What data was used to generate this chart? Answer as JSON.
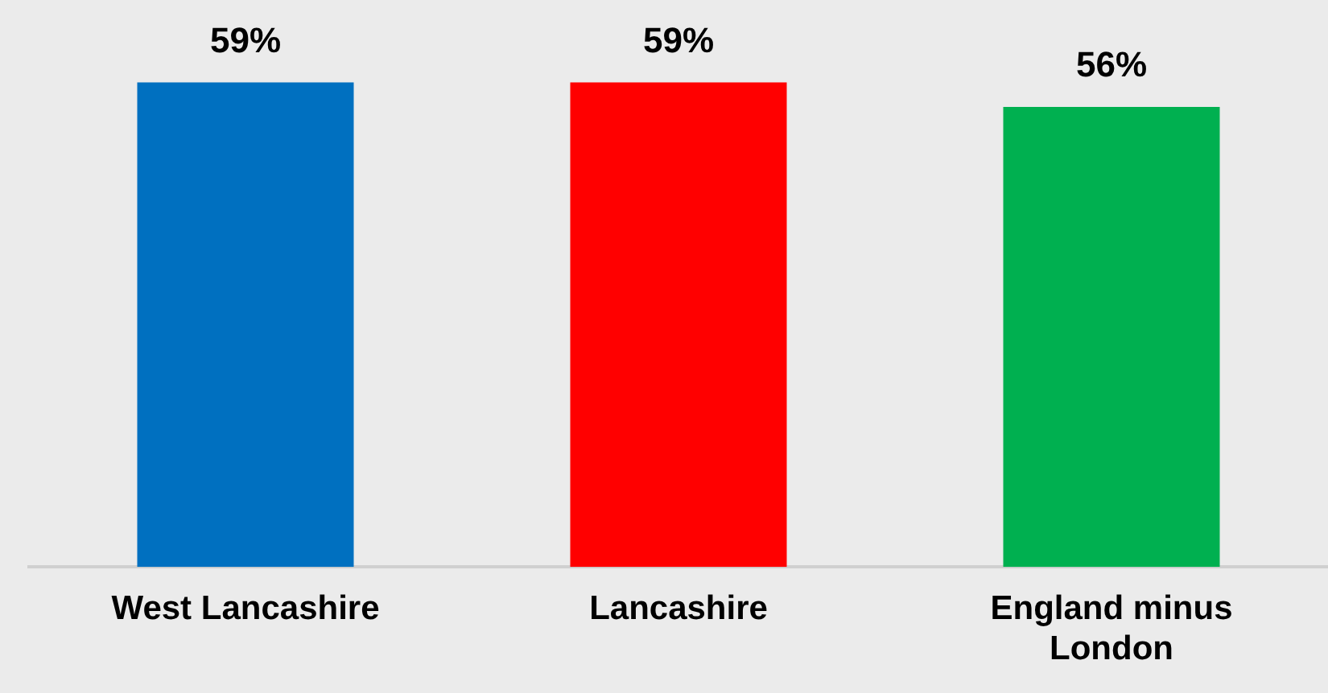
{
  "chart_data": {
    "type": "bar",
    "categories": [
      "West Lancashire",
      "Lancashire",
      "England minus London"
    ],
    "values": [
      59,
      59,
      56
    ],
    "colors": [
      "#0070c0",
      "#ff0000",
      "#00b050"
    ],
    "value_labels": [
      "59%",
      "59%",
      "56%"
    ],
    "grid": false,
    "legend": false
  }
}
